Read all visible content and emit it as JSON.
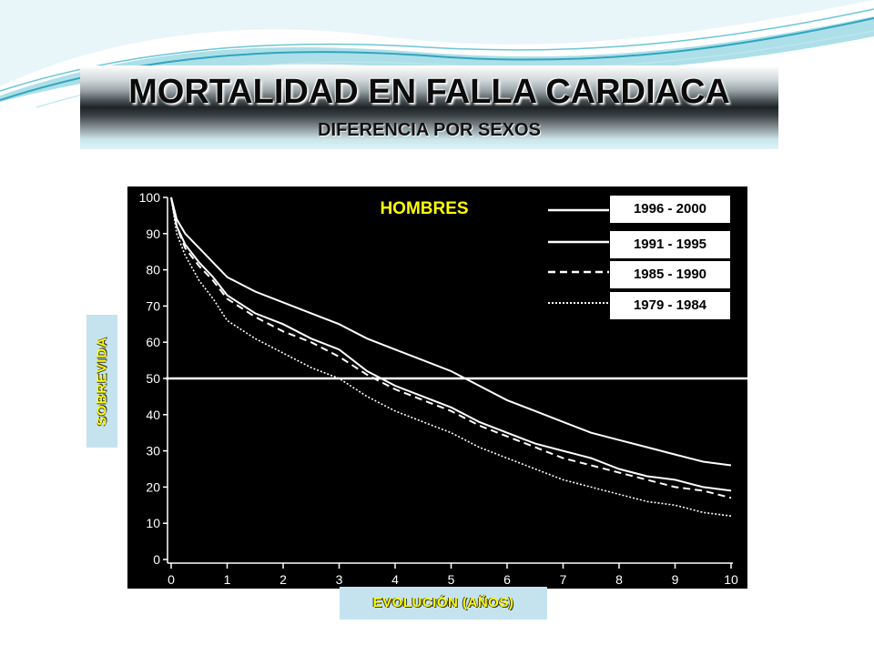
{
  "slide": {
    "title": "MORTALIDAD EN FALLA CARDIACA",
    "subtitle": "DIFERENCIA POR SEXOS",
    "colors": {
      "title_text": "#0b0b0b",
      "axis_label_text": "#ffff00",
      "axis_label_bg": "#c4e3ef",
      "chart_bg": "#000000",
      "wave_accent": "#4fb6c9"
    }
  },
  "chart_data": {
    "type": "line",
    "title": "HOMBRES",
    "xlabel": "EVOLUCIÓN  (AÑOS)",
    "ylabel": "SOBREVIDA",
    "xlim": [
      0,
      10
    ],
    "ylim": [
      0,
      100
    ],
    "x_ticks": [
      "0",
      "1",
      "2",
      "3",
      "4",
      "5",
      "6",
      "7",
      "8",
      "9",
      "10"
    ],
    "y_ticks": [
      "0",
      "10",
      "20",
      "30",
      "40",
      "50",
      "60",
      "70",
      "80",
      "90",
      "100"
    ],
    "reference_line_y": 50,
    "legend_placement": "top-right",
    "x": [
      0,
      0.1,
      0.25,
      0.5,
      0.75,
      1,
      1.5,
      2,
      2.5,
      3,
      3.5,
      4,
      4.5,
      5,
      5.5,
      6,
      6.5,
      7,
      7.5,
      8,
      8.5,
      9,
      9.5,
      10
    ],
    "series": [
      {
        "name": "1996 - 2000",
        "style": "solid",
        "values": [
          100,
          94,
          90,
          86,
          82,
          78,
          74,
          71,
          68,
          65,
          61,
          58,
          55,
          52,
          48,
          44,
          41,
          38,
          35,
          33,
          31,
          29,
          27,
          26
        ]
      },
      {
        "name": "1991 - 1995",
        "style": "solid",
        "values": [
          100,
          92,
          87,
          82,
          78,
          73,
          68,
          65,
          61,
          58,
          52,
          48,
          45,
          42,
          38,
          35,
          32,
          30,
          28,
          25,
          23,
          22,
          20,
          19
        ]
      },
      {
        "name": "1985 - 1990",
        "style": "dashed",
        "values": [
          100,
          92,
          86,
          81,
          77,
          72,
          67,
          63,
          60,
          56,
          51,
          47,
          44,
          41,
          37,
          34,
          31,
          28,
          26,
          24,
          22,
          20,
          19,
          17
        ]
      },
      {
        "name": "1979 - 1984",
        "style": "dotted",
        "values": [
          100,
          90,
          84,
          77,
          72,
          66,
          61,
          57,
          53,
          50,
          45,
          41,
          38,
          35,
          31,
          28,
          25,
          22,
          20,
          18,
          16,
          15,
          13,
          12
        ]
      }
    ]
  }
}
